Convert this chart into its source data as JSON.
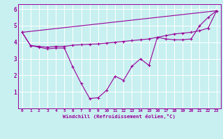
{
  "xlabel": "Windchill (Refroidissement éolien,°C)",
  "background_color": "#c8f0f0",
  "line_color": "#990099",
  "xlim": [
    -0.5,
    23.5
  ],
  "ylim": [
    0,
    6.3
  ],
  "yticks": [
    1,
    2,
    3,
    4,
    5,
    6
  ],
  "xticks": [
    0,
    1,
    2,
    3,
    4,
    5,
    6,
    7,
    8,
    9,
    10,
    11,
    12,
    13,
    14,
    15,
    16,
    17,
    18,
    19,
    20,
    21,
    22,
    23
  ],
  "line1_x": [
    0,
    1,
    2,
    3,
    4,
    5,
    6,
    7,
    8,
    9,
    10,
    11,
    12,
    13,
    14,
    15,
    16,
    17,
    18,
    19,
    20,
    21,
    22,
    23
  ],
  "line1_y": [
    4.6,
    3.8,
    3.7,
    3.6,
    3.65,
    3.65,
    2.5,
    1.5,
    0.6,
    0.65,
    1.1,
    1.95,
    1.7,
    2.55,
    3.0,
    2.6,
    4.3,
    4.2,
    4.15,
    4.15,
    4.2,
    5.0,
    5.5,
    5.9
  ],
  "line2_x": [
    0,
    1,
    2,
    3,
    4,
    5,
    6,
    7,
    8,
    9,
    10,
    11,
    12,
    13,
    14,
    15,
    16,
    17,
    18,
    19,
    20,
    21,
    22,
    23
  ],
  "line2_y": [
    4.6,
    3.8,
    3.75,
    3.7,
    3.75,
    3.75,
    3.82,
    3.85,
    3.88,
    3.9,
    3.95,
    4.0,
    4.05,
    4.1,
    4.15,
    4.2,
    4.3,
    4.4,
    4.5,
    4.55,
    4.6,
    4.7,
    4.85,
    5.9
  ],
  "line3_x": [
    0,
    23
  ],
  "line3_y": [
    4.6,
    5.9
  ],
  "marker": "+"
}
